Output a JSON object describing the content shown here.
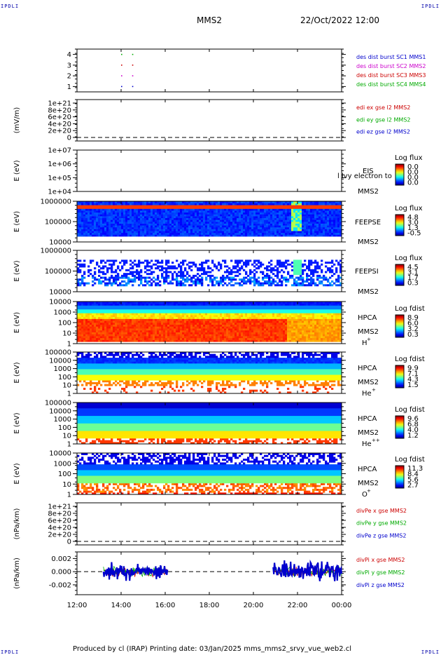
{
  "corners": {
    "tl": "IPDLI",
    "tr": "IPDLI",
    "bl": "IPDLI",
    "br": "IPDLI"
  },
  "header": {
    "mission": "MMS2",
    "datetime": "22/Oct/2022 12:00"
  },
  "footer": {
    "text": "Produced by cl (IRAP)   Printing date: 03/Jan/2025   mms_mms2_srvy_vue_web2.cl"
  },
  "colors": {
    "spec_low": "#0000cc",
    "spec_high": "#ff2200",
    "background": "#ffffff"
  },
  "chart_data": [
    {
      "type": "scatter",
      "id": "burst",
      "yticks": [
        "1",
        "2",
        "3",
        "4"
      ],
      "ylim": [
        0.5,
        4.5
      ],
      "legend": [
        {
          "text": "des dist burst SC1 MMS1",
          "color": "#0000cc"
        },
        {
          "text": "des dist burst SC2 MMS2",
          "color": "#cc00cc"
        },
        {
          "text": "des dist burst SC3 MMS3",
          "color": "#cc0000"
        },
        {
          "text": "des dist burst SC4 MMS4",
          "color": "#00aa00"
        }
      ],
      "series": [
        {
          "x": [
            14.0,
            14.5
          ],
          "y": 4,
          "color": "#00aa00"
        },
        {
          "x": [
            14.0,
            14.5
          ],
          "y": 3,
          "color": "#cc0000"
        },
        {
          "x": [
            14.0,
            14.5
          ],
          "y": 2,
          "color": "#cc00cc"
        },
        {
          "x": [
            14.0,
            14.5
          ],
          "y": 1,
          "color": "#0000cc"
        }
      ]
    },
    {
      "type": "line",
      "id": "edi",
      "ylabel": "(mV/m)",
      "yticks": [
        "0",
        "2e+20",
        "4e+20",
        "6e+20",
        "8e+20",
        "1e+21"
      ],
      "ylim": [
        0,
        1e+21
      ],
      "legend": [
        {
          "text": "edi ex gse l2 MMS2",
          "color": "#cc0000"
        },
        {
          "text": "edi ey gse l2 MMS2",
          "color": "#00aa00"
        },
        {
          "text": "edi ez gse l2 MMS2",
          "color": "#0000cc"
        }
      ]
    },
    {
      "type": "heatmap",
      "id": "eis",
      "ylabel": "E (eV)",
      "yticks": [
        "1e+04",
        "1e+05",
        "1e+06",
        "1e+07"
      ],
      "side": [
        "EIS",
        "MMS2"
      ],
      "overlay": "l lvy electron to",
      "cb_title": "Log flux",
      "cb_ticks": [
        "0.0",
        "0.0",
        "0.0",
        "0.0"
      ]
    },
    {
      "type": "heatmap",
      "id": "feepse",
      "ylabel": "E (eV)",
      "yticks": [
        "10000",
        "100000",
        "1000000"
      ],
      "side": [
        "FEEPSE",
        "MMS2"
      ],
      "cb_title": "Log flux",
      "cb_ticks": [
        "4.8",
        "3.0",
        "1.3",
        "-0.5"
      ]
    },
    {
      "type": "heatmap",
      "id": "feepsi",
      "ylabel": "E (eV)",
      "yticks": [
        "10000",
        "100000",
        "1000000"
      ],
      "side": [
        "FEEPSI",
        "MMS2"
      ],
      "cb_title": "Log flux",
      "cb_ticks": [
        "4.5",
        "3.1",
        "1.7",
        "0.3"
      ]
    },
    {
      "type": "heatmap",
      "id": "hpca_h",
      "ylabel": "E (eV)",
      "yticks": [
        "1",
        "10",
        "100",
        "1000",
        "10000"
      ],
      "side": [
        "HPCA",
        "MMS2"
      ],
      "species": "H",
      "charge": "+",
      "cb_title": "Log fdist",
      "cb_ticks": [
        "8.9",
        "6.0",
        "3.2",
        "0.3"
      ]
    },
    {
      "type": "heatmap",
      "id": "hpca_he",
      "ylabel": "E (eV)",
      "yticks": [
        "1",
        "10",
        "100",
        "1000",
        "10000",
        "100000"
      ],
      "side": [
        "HPCA",
        "MMS2"
      ],
      "species": "He",
      "charge": "+",
      "cb_title": "Log fdist",
      "cb_ticks": [
        "9.9",
        "7.1",
        "4.3",
        "1.5"
      ]
    },
    {
      "type": "heatmap",
      "id": "hpca_he2",
      "ylabel": "E (eV)",
      "yticks": [
        "1",
        "10",
        "100",
        "1000",
        "10000",
        "100000"
      ],
      "side": [
        "HPCA",
        "MMS2"
      ],
      "species": "He",
      "charge": "++",
      "cb_title": "Log fdist",
      "cb_ticks": [
        "9.6",
        "6.8",
        "4.0",
        "1.2"
      ]
    },
    {
      "type": "heatmap",
      "id": "hpca_o",
      "ylabel": "E (eV)",
      "yticks": [
        "1",
        "10",
        "100",
        "1000",
        "10000"
      ],
      "side": [
        "HPCA",
        "MMS2"
      ],
      "species": "O",
      "charge": "+",
      "cb_title": "Log fdist",
      "cb_ticks": [
        "11.3",
        "8.4",
        "5.6",
        "2.7"
      ]
    },
    {
      "type": "line",
      "id": "divpe",
      "ylabel": "(nPa/km)",
      "yticks": [
        "0",
        "2e+20",
        "4e+20",
        "6e+20",
        "8e+20",
        "1e+21"
      ],
      "ylim": [
        0,
        1e+21
      ],
      "legend": [
        {
          "text": "divPe x gse MMS2",
          "color": "#cc0000"
        },
        {
          "text": "divPe y gse MMS2",
          "color": "#00aa00"
        },
        {
          "text": "divPe z gse MMS2",
          "color": "#0000cc"
        }
      ]
    },
    {
      "type": "line",
      "id": "divpi",
      "ylabel": "(nPa/km)",
      "yticks": [
        "-0.002",
        "0.000",
        "0.002"
      ],
      "ylim": [
        -0.0035,
        0.003
      ],
      "legend": [
        {
          "text": "divPi x gse MMS2",
          "color": "#cc0000"
        },
        {
          "text": "divPi y gse MMS2",
          "color": "#00aa00"
        },
        {
          "text": "divPi z gse MMS2",
          "color": "#0000cc"
        }
      ],
      "segments": [
        [
          13.2,
          16.1
        ],
        [
          20.9,
          24.0
        ]
      ]
    }
  ],
  "xaxis": {
    "ticks": [
      "12:00",
      "14:00",
      "16:00",
      "18:00",
      "20:00",
      "22:00",
      "00:00"
    ],
    "range_hours": [
      12,
      24
    ]
  }
}
